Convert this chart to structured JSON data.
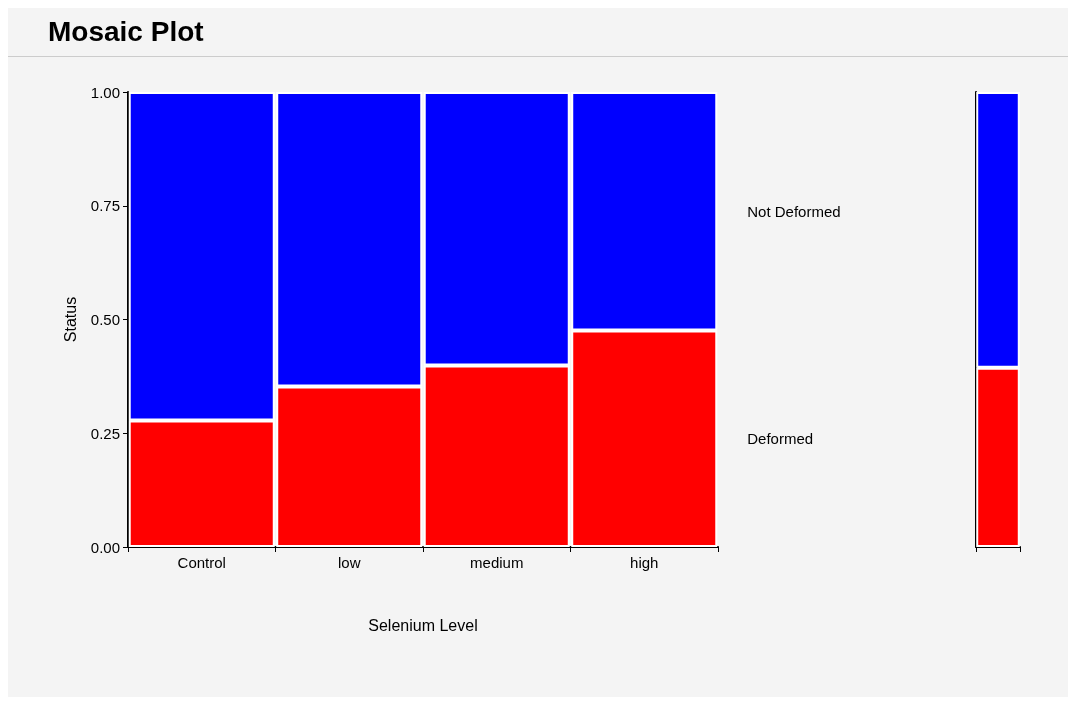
{
  "chart_data": [
    {
      "type": "bar",
      "title": "Mosaic Plot",
      "xlabel": "Selenium Level",
      "ylabel": "Status",
      "stacked": true,
      "categories": [
        "Control",
        "low",
        "medium",
        "high"
      ],
      "series": [
        {
          "name": "Deformed",
          "color": "#ff0000",
          "values": [
            0.278,
            0.353,
            0.399,
            0.476
          ]
        },
        {
          "name": "Not Deformed",
          "color": "#0000ff",
          "values": [
            0.722,
            0.647,
            0.601,
            0.524
          ]
        }
      ],
      "ylim": [
        0,
        1
      ],
      "yticks": [
        {
          "value": 0,
          "label": "0.00"
        },
        {
          "value": 0.25,
          "label": "0.25"
        },
        {
          "value": 0.5,
          "label": "0.50"
        },
        {
          "value": 0.75,
          "label": "0.75"
        },
        {
          "value": 1,
          "label": "1.00"
        }
      ],
      "grid": false,
      "legend": false
    },
    {
      "type": "bar",
      "stacked": true,
      "categories": [
        null
      ],
      "series": [
        {
          "color": "#ff0000",
          "values": [
            0.394
          ]
        },
        {
          "color": "#0000ff",
          "values": [
            0.606
          ]
        }
      ],
      "ylim": [
        0,
        1
      ],
      "grid": false,
      "legend": false
    }
  ]
}
